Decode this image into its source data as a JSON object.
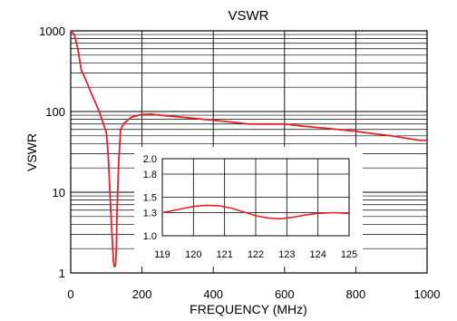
{
  "chart_data": [
    {
      "type": "line",
      "title": "VSWR",
      "xlabel": "FREQUENCY (MHz)",
      "ylabel": "VSWR",
      "x_scale": "linear",
      "y_scale": "log",
      "xlim": [
        0,
        1000
      ],
      "ylim": [
        1,
        1000
      ],
      "xticks": [
        "0",
        "200",
        "400",
        "600",
        "800",
        "1000"
      ],
      "yticks": [
        "1",
        "10",
        "100",
        "1000"
      ],
      "grid": true,
      "line_color": "#e8202a",
      "series": [
        {
          "x": [
            0,
            10,
            20,
            30,
            40,
            60,
            80,
            100,
            105,
            110,
            115,
            120,
            122,
            124,
            126,
            128,
            130,
            135,
            140,
            150,
            170,
            200,
            225,
            250,
            300,
            350,
            400,
            450,
            500,
            550,
            600,
            650,
            700,
            750,
            800,
            850,
            900,
            950,
            980,
            1000
          ],
          "y": [
            1000,
            900,
            600,
            320,
            260,
            160,
            100,
            55,
            30,
            10,
            3.5,
            1.35,
            1.2,
            1.2,
            1.3,
            2,
            6,
            25,
            60,
            72,
            85,
            92,
            93,
            90,
            86,
            82,
            78,
            74,
            70,
            70,
            70,
            66,
            63,
            60,
            57,
            53,
            50,
            46,
            44,
            44
          ]
        }
      ]
    },
    {
      "type": "line",
      "xlim": [
        119,
        125
      ],
      "ylim": [
        1.0,
        2.0
      ],
      "xticks": [
        "119",
        "120",
        "121",
        "122",
        "123",
        "124",
        "125"
      ],
      "yticks": [
        "1.0",
        "1.3",
        "1.5",
        "1.8",
        "2.0"
      ],
      "grid": true,
      "line_color": "#e8202a",
      "series": [
        {
          "x": [
            119,
            119.5,
            120,
            120.4,
            120.8,
            121.2,
            121.6,
            122,
            122.4,
            122.8,
            123.2,
            123.6,
            124,
            124.5,
            125
          ],
          "y": [
            1.3,
            1.34,
            1.38,
            1.395,
            1.39,
            1.36,
            1.31,
            1.26,
            1.23,
            1.22,
            1.24,
            1.27,
            1.29,
            1.3,
            1.29
          ]
        }
      ]
    }
  ]
}
